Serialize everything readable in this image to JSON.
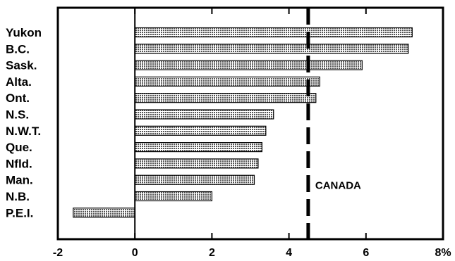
{
  "chart_data": {
    "type": "bar",
    "orientation": "horizontal",
    "categories": [
      "Yukon",
      "B.C.",
      "Sask.",
      "Alta.",
      "Ont.",
      "N.S.",
      "N.W.T.",
      "Que.",
      "Nfld.",
      "Man.",
      "N.B.",
      "P.E.I."
    ],
    "values": [
      7.2,
      7.1,
      5.9,
      4.8,
      4.7,
      3.6,
      3.4,
      3.3,
      3.2,
      3.1,
      2.0,
      -1.6
    ],
    "xlim": [
      -2,
      8
    ],
    "xticks": [
      {
        "value": -2,
        "label": "-2"
      },
      {
        "value": 0,
        "label": "0"
      },
      {
        "value": 2,
        "label": "2"
      },
      {
        "value": 4,
        "label": "4"
      },
      {
        "value": 6,
        "label": "6"
      },
      {
        "value": 8,
        "label": "8%"
      }
    ],
    "reference_line": {
      "label": "CANADA",
      "value": 4.5,
      "style": "dashed"
    },
    "grid": false,
    "bar_color": "#8a8a8a",
    "title": "",
    "xlabel": "",
    "ylabel": ""
  }
}
